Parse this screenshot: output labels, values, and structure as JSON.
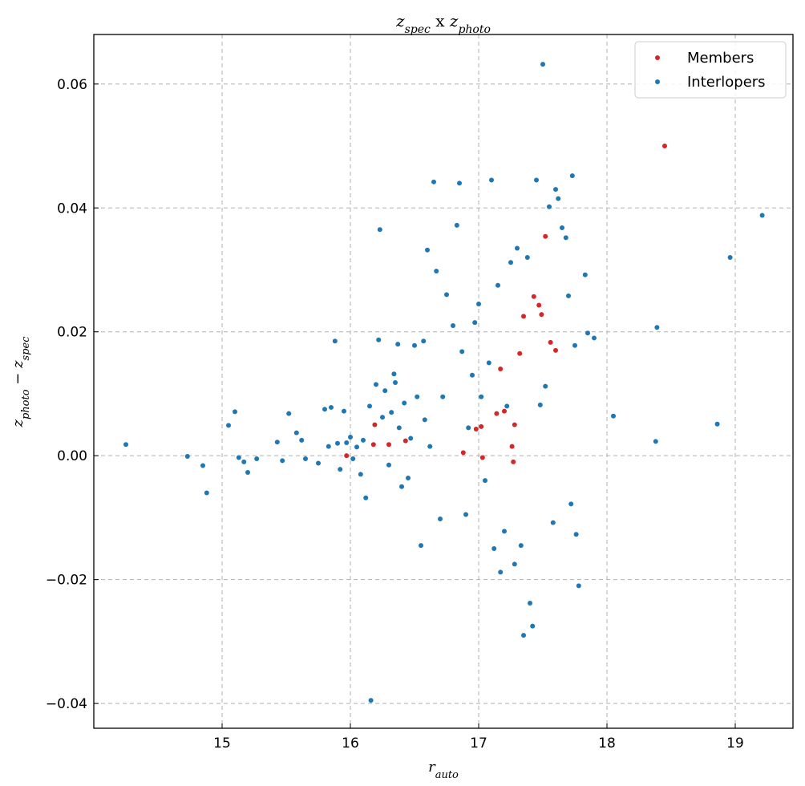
{
  "chart_data": {
    "type": "scatter",
    "title": "z_spec x z_photo",
    "xlabel": "r_auto",
    "ylabel": "z_photo − z_spec",
    "xlim": [
      14.0,
      19.45
    ],
    "ylim": [
      -0.044,
      0.068
    ],
    "xticks": [
      15,
      16,
      17,
      18,
      19
    ],
    "yticks": [
      -0.04,
      -0.02,
      0.0,
      0.02,
      0.04,
      0.06
    ],
    "ytick_labels": [
      "−0.04",
      "−0.02",
      "0.00",
      "0.02",
      "0.04",
      "0.06"
    ],
    "grid": true,
    "legend_position": "top-right",
    "colors": {
      "members": "#d62728",
      "interlopers": "#1f77b4"
    },
    "series": [
      {
        "name": "Members",
        "points": [
          [
            15.97,
            0.0
          ],
          [
            16.19,
            0.005
          ],
          [
            16.18,
            0.0018
          ],
          [
            16.3,
            0.0018
          ],
          [
            16.43,
            0.0024
          ],
          [
            16.88,
            0.0005
          ],
          [
            16.98,
            0.0043
          ],
          [
            17.02,
            0.0047
          ],
          [
            17.03,
            -0.0003
          ],
          [
            17.14,
            0.0068
          ],
          [
            17.2,
            0.0072
          ],
          [
            17.26,
            0.0015
          ],
          [
            17.28,
            0.005
          ],
          [
            17.27,
            -0.001
          ],
          [
            17.17,
            0.014
          ],
          [
            17.32,
            0.0165
          ],
          [
            17.35,
            0.0225
          ],
          [
            17.43,
            0.0257
          ],
          [
            17.47,
            0.0243
          ],
          [
            17.49,
            0.0228
          ],
          [
            17.52,
            0.0354
          ],
          [
            17.56,
            0.0183
          ],
          [
            17.6,
            0.017
          ],
          [
            18.45,
            0.05
          ]
        ]
      },
      {
        "name": "Interlopers",
        "points": [
          [
            14.25,
            0.0018
          ],
          [
            14.73,
            -0.0001
          ],
          [
            14.85,
            -0.0016
          ],
          [
            14.88,
            -0.006
          ],
          [
            15.05,
            0.0049
          ],
          [
            15.1,
            0.0071
          ],
          [
            15.13,
            -0.0003
          ],
          [
            15.17,
            -0.001
          ],
          [
            15.2,
            -0.0027
          ],
          [
            15.27,
            -0.0005
          ],
          [
            15.43,
            0.0022
          ],
          [
            15.47,
            -0.0008
          ],
          [
            15.52,
            0.0068
          ],
          [
            15.58,
            0.0037
          ],
          [
            15.62,
            0.0025
          ],
          [
            15.65,
            -0.0005
          ],
          [
            15.75,
            -0.0012
          ],
          [
            15.8,
            0.0075
          ],
          [
            15.83,
            0.0015
          ],
          [
            15.85,
            0.0078
          ],
          [
            15.88,
            0.0185
          ],
          [
            15.9,
            0.002
          ],
          [
            15.92,
            -0.0022
          ],
          [
            15.95,
            0.0072
          ],
          [
            15.97,
            0.0021
          ],
          [
            16.0,
            0.003
          ],
          [
            16.02,
            -0.0005
          ],
          [
            16.05,
            0.0014
          ],
          [
            16.08,
            -0.003
          ],
          [
            16.1,
            0.0025
          ],
          [
            16.12,
            -0.0068
          ],
          [
            16.15,
            0.008
          ],
          [
            16.16,
            -0.0395
          ],
          [
            16.2,
            0.0115
          ],
          [
            16.22,
            0.0187
          ],
          [
            16.23,
            0.0365
          ],
          [
            16.25,
            0.0062
          ],
          [
            16.27,
            0.0105
          ],
          [
            16.3,
            -0.0015
          ],
          [
            16.32,
            0.007
          ],
          [
            16.34,
            0.0132
          ],
          [
            16.35,
            0.0118
          ],
          [
            16.37,
            0.018
          ],
          [
            16.38,
            0.0045
          ],
          [
            16.4,
            -0.005
          ],
          [
            16.42,
            0.0085
          ],
          [
            16.45,
            -0.0036
          ],
          [
            16.47,
            0.0028
          ],
          [
            16.5,
            0.0178
          ],
          [
            16.52,
            0.0095
          ],
          [
            16.55,
            -0.0145
          ],
          [
            16.57,
            0.0185
          ],
          [
            16.58,
            0.0058
          ],
          [
            16.6,
            0.0332
          ],
          [
            16.62,
            0.0015
          ],
          [
            16.65,
            0.0442
          ],
          [
            16.67,
            0.0298
          ],
          [
            16.7,
            -0.0102
          ],
          [
            16.72,
            0.0095
          ],
          [
            16.75,
            0.026
          ],
          [
            16.8,
            0.021
          ],
          [
            16.83,
            0.0372
          ],
          [
            16.85,
            0.044
          ],
          [
            16.87,
            0.0168
          ],
          [
            16.9,
            -0.0095
          ],
          [
            16.92,
            0.0045
          ],
          [
            16.95,
            0.013
          ],
          [
            16.97,
            0.0215
          ],
          [
            17.0,
            0.0245
          ],
          [
            17.02,
            0.0095
          ],
          [
            17.05,
            -0.004
          ],
          [
            17.08,
            0.015
          ],
          [
            17.1,
            0.0445
          ],
          [
            17.12,
            -0.015
          ],
          [
            17.15,
            0.0275
          ],
          [
            17.17,
            -0.0188
          ],
          [
            17.2,
            -0.0122
          ],
          [
            17.22,
            0.008
          ],
          [
            17.25,
            0.0312
          ],
          [
            17.28,
            -0.0175
          ],
          [
            17.3,
            0.0335
          ],
          [
            17.33,
            -0.0145
          ],
          [
            17.35,
            -0.029
          ],
          [
            17.38,
            0.032
          ],
          [
            17.4,
            -0.0238
          ],
          [
            17.42,
            -0.0275
          ],
          [
            17.45,
            0.0445
          ],
          [
            17.48,
            0.0082
          ],
          [
            17.5,
            0.0632
          ],
          [
            17.52,
            0.0112
          ],
          [
            17.55,
            0.0402
          ],
          [
            17.58,
            -0.0108
          ],
          [
            17.6,
            0.043
          ],
          [
            17.62,
            0.0415
          ],
          [
            17.65,
            0.0368
          ],
          [
            17.68,
            0.0352
          ],
          [
            17.7,
            0.0258
          ],
          [
            17.72,
            -0.0078
          ],
          [
            17.73,
            0.0452
          ],
          [
            17.75,
            0.0178
          ],
          [
            17.76,
            -0.0127
          ],
          [
            17.78,
            -0.021
          ],
          [
            17.83,
            0.0292
          ],
          [
            17.85,
            0.0198
          ],
          [
            17.9,
            0.019
          ],
          [
            18.05,
            0.0064
          ],
          [
            18.38,
            0.0023
          ],
          [
            18.39,
            0.0207
          ],
          [
            18.86,
            0.0051
          ],
          [
            18.96,
            0.032
          ],
          [
            19.21,
            0.0388
          ]
        ]
      }
    ]
  }
}
